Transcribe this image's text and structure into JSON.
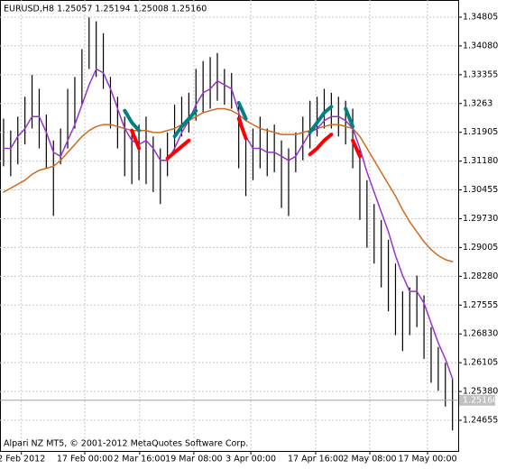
{
  "chart_data": {
    "type": "ohlc",
    "title": "EURUSD,H8  1.25057 1.25194 1.25008 1.25160",
    "footer": "Alpari NZ MT5, © 2001-2012 MetaQuotes Software Corp.",
    "grid": true,
    "color": "#000000",
    "x": [
      0,
      1,
      2,
      3,
      4,
      5,
      6,
      7,
      8,
      9,
      10,
      11,
      12,
      13,
      14,
      15,
      16,
      17,
      18,
      19,
      20,
      21,
      22,
      23,
      24,
      25,
      26,
      27,
      28,
      29,
      30,
      31,
      32,
      33,
      34,
      35,
      36,
      37,
      38,
      39,
      40,
      41,
      42,
      43,
      44,
      45,
      46,
      47,
      48,
      49,
      50,
      51,
      52,
      53,
      54,
      55,
      56,
      57,
      58,
      59,
      60,
      61,
      62,
      63
    ],
    "high": [
      1.3225,
      1.3195,
      1.323,
      1.328,
      1.3335,
      1.33,
      1.3235,
      1.317,
      1.32,
      1.33,
      1.333,
      1.34,
      1.348,
      1.347,
      1.344,
      1.333,
      1.328,
      1.323,
      1.32,
      1.321,
      1.323,
      1.318,
      1.315,
      1.319,
      1.326,
      1.328,
      1.329,
      1.335,
      1.337,
      1.338,
      1.339,
      1.335,
      1.334,
      1.326,
      1.318,
      1.32,
      1.323,
      1.32,
      1.321,
      1.317,
      1.315,
      1.319,
      1.323,
      1.327,
      1.328,
      1.33,
      1.329,
      1.328,
      1.327,
      1.325,
      1.315,
      1.307,
      1.301,
      1.297,
      1.292,
      1.286,
      1.279,
      1.28,
      1.283,
      1.278,
      1.27,
      1.265,
      1.261,
      1.257
    ],
    "low": [
      1.3105,
      1.308,
      1.311,
      1.316,
      1.32,
      1.315,
      1.31,
      1.298,
      1.311,
      1.315,
      1.32,
      1.326,
      1.335,
      1.333,
      1.33,
      1.32,
      1.315,
      1.308,
      1.306,
      1.307,
      1.306,
      1.304,
      1.301,
      1.308,
      1.314,
      1.318,
      1.319,
      1.322,
      1.324,
      1.325,
      1.327,
      1.326,
      1.325,
      1.31,
      1.303,
      1.307,
      1.31,
      1.308,
      1.309,
      1.3,
      1.298,
      1.309,
      1.312,
      1.315,
      1.318,
      1.32,
      1.32,
      1.318,
      1.316,
      1.31,
      1.297,
      1.29,
      1.286,
      1.28,
      1.274,
      1.268,
      1.264,
      1.268,
      1.27,
      1.262,
      1.256,
      1.254,
      1.25,
      1.244
    ],
    "series": [
      {
        "color": "#d2691e",
        "width": 1.5,
        "values": [
          1.304,
          1.305,
          1.306,
          1.307,
          1.3085,
          1.3095,
          1.31,
          1.3105,
          1.312,
          1.314,
          1.316,
          1.318,
          1.3195,
          1.3205,
          1.321,
          1.321,
          1.3205,
          1.32,
          1.3195,
          1.3195,
          1.3195,
          1.319,
          1.319,
          1.3195,
          1.32,
          1.321,
          1.322,
          1.323,
          1.324,
          1.3245,
          1.325,
          1.325,
          1.3245,
          1.3235,
          1.322,
          1.321,
          1.32,
          1.3195,
          1.319,
          1.3185,
          1.3185,
          1.3185,
          1.319,
          1.3195,
          1.32,
          1.3205,
          1.321,
          1.321,
          1.3205,
          1.32,
          1.318,
          1.315,
          1.312,
          1.309,
          1.306,
          1.303,
          1.2995,
          1.2965,
          1.294,
          1.2915,
          1.2895,
          1.288,
          1.287,
          1.2865
        ]
      },
      {
        "color": "#9932cc",
        "width": 1.5,
        "values": [
          1.315,
          1.315,
          1.318,
          1.32,
          1.323,
          1.323,
          1.319,
          1.314,
          1.313,
          1.317,
          1.321,
          1.326,
          1.331,
          1.335,
          1.334,
          1.33,
          1.325,
          1.32,
          1.317,
          1.316,
          1.317,
          1.315,
          1.312,
          1.312,
          1.315,
          1.319,
          1.322,
          1.326,
          1.329,
          1.33,
          1.332,
          1.331,
          1.33,
          1.324,
          1.318,
          1.315,
          1.315,
          1.314,
          1.314,
          1.313,
          1.312,
          1.313,
          1.316,
          1.319,
          1.32,
          1.322,
          1.323,
          1.323,
          1.322,
          1.32,
          1.315,
          1.309,
          1.304,
          1.299,
          1.294,
          1.288,
          1.283,
          1.279,
          1.279,
          1.276,
          1.271,
          1.266,
          1.262,
          1.257
        ]
      },
      {
        "color": "#008080",
        "width": 4,
        "values": [
          null,
          null,
          null,
          null,
          null,
          null,
          null,
          null,
          null,
          null,
          null,
          null,
          null,
          null,
          null,
          null,
          null,
          1.3245,
          1.3215,
          1.3195,
          null,
          null,
          null,
          null,
          1.318,
          1.3205,
          1.3225,
          1.3245,
          null,
          null,
          null,
          null,
          null,
          1.3265,
          1.3225,
          null,
          null,
          null,
          null,
          null,
          null,
          null,
          null,
          1.319,
          1.3215,
          1.324,
          1.3255,
          null,
          1.325,
          1.3205,
          null,
          null,
          null,
          null,
          null,
          null,
          null,
          null,
          null,
          null,
          null,
          null,
          null,
          null
        ]
      },
      {
        "color": "#ff0000",
        "width": 4,
        "values": [
          null,
          null,
          null,
          null,
          null,
          null,
          null,
          null,
          null,
          null,
          null,
          null,
          null,
          null,
          null,
          null,
          null,
          null,
          1.3195,
          1.315,
          null,
          null,
          null,
          1.3125,
          1.314,
          1.3155,
          1.317,
          null,
          null,
          null,
          null,
          null,
          null,
          1.3225,
          1.3175,
          null,
          null,
          null,
          null,
          null,
          null,
          null,
          null,
          1.3135,
          1.315,
          1.317,
          1.3185,
          null,
          null,
          1.317,
          1.313,
          null,
          null,
          null,
          null,
          null,
          null,
          null,
          null,
          null,
          null,
          null,
          null,
          null
        ]
      }
    ],
    "last_price": {
      "value": 1.2516,
      "label": "1.25160"
    },
    "xlim": [
      -0.5,
      63.8
    ],
    "xticks": [
      {
        "value": 2.5,
        "label": "2 Feb 2012"
      },
      {
        "value": 11.4,
        "label": "17 Feb 00:00"
      },
      {
        "value": 19.1,
        "label": "2 Mar 16:00"
      },
      {
        "value": 26.7,
        "label": "19 Mar 08:00"
      },
      {
        "value": 34.7,
        "label": "3 Apr 00:00"
      },
      {
        "value": 43.8,
        "label": "17 Apr 16:00"
      },
      {
        "value": 51.4,
        "label": "2 May 08:00"
      },
      {
        "value": 59.5,
        "label": "17 May 00:00"
      }
    ],
    "ylim": [
      1.23883,
      1.35236
    ],
    "yticks": [
      1.34805,
      {
        "value": 1.3408,
        "label": "1.34080"
      },
      1.33355,
      1.3263,
      {
        "value": 1.31905,
        "label": "1.31905"
      },
      {
        "value": 1.3118,
        "label": "1.31180"
      },
      1.30455,
      {
        "value": 1.2973,
        "label": "1.29730"
      },
      1.29005,
      {
        "value": 1.2828,
        "label": "1.28280"
      },
      1.27555,
      {
        "value": 1.2683,
        "label": "1.26830"
      },
      1.26105,
      {
        "value": 1.2538,
        "label": "1.25380"
      },
      1.24655
    ]
  }
}
